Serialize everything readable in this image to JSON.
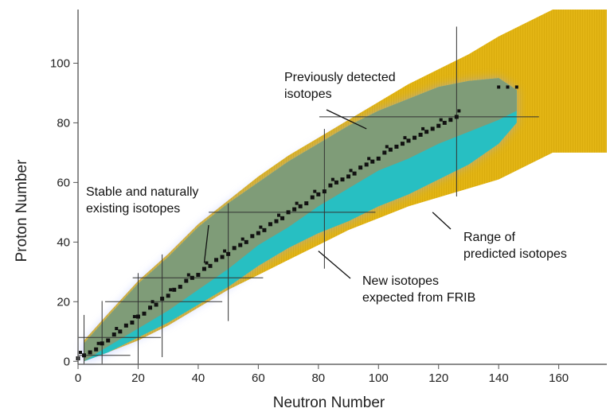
{
  "chart_data": {
    "type": "area",
    "title": "",
    "xlabel": "Neutron Number",
    "ylabel": "Proton Number",
    "xlim": [
      0,
      176
    ],
    "ylim": [
      -1,
      118
    ],
    "x_ticks": [
      0,
      20,
      40,
      60,
      80,
      100,
      120,
      140,
      160
    ],
    "y_ticks": [
      0,
      20,
      40,
      60,
      80,
      100
    ],
    "grid": false,
    "legend": "none",
    "magic_numbers": [
      2,
      8,
      20,
      28,
      50,
      82,
      126
    ],
    "regions": [
      {
        "label": "Range of predicted isotopes",
        "color": "#e3b514",
        "upper": [
          [
            2,
            7
          ],
          [
            10,
            16
          ],
          [
            20,
            27
          ],
          [
            30,
            36
          ],
          [
            40,
            46
          ],
          [
            50,
            54
          ],
          [
            60,
            62
          ],
          [
            70,
            69
          ],
          [
            80,
            75
          ],
          [
            90,
            81
          ],
          [
            100,
            87
          ],
          [
            110,
            93
          ],
          [
            120,
            98
          ],
          [
            130,
            103
          ],
          [
            140,
            109
          ],
          [
            150,
            114
          ],
          [
            158,
            118
          ],
          [
            176,
            118
          ]
        ],
        "lower": [
          [
            2,
            0
          ],
          [
            10,
            3
          ],
          [
            20,
            7
          ],
          [
            30,
            12
          ],
          [
            40,
            18
          ],
          [
            50,
            24
          ],
          [
            60,
            29
          ],
          [
            70,
            34
          ],
          [
            80,
            39
          ],
          [
            90,
            44
          ],
          [
            100,
            48
          ],
          [
            110,
            52
          ],
          [
            120,
            55
          ],
          [
            130,
            58
          ],
          [
            140,
            61
          ],
          [
            150,
            66
          ],
          [
            158,
            70
          ],
          [
            176,
            70
          ]
        ]
      },
      {
        "label": "New isotopes expected from FRIB",
        "color": "#27bfc2",
        "upper": [
          [
            2,
            6
          ],
          [
            10,
            15
          ],
          [
            20,
            26
          ],
          [
            30,
            35
          ],
          [
            40,
            45
          ],
          [
            50,
            53
          ],
          [
            60,
            60
          ],
          [
            70,
            67
          ],
          [
            80,
            73
          ],
          [
            90,
            79
          ],
          [
            100,
            84
          ],
          [
            110,
            88
          ],
          [
            120,
            92
          ],
          [
            130,
            94
          ],
          [
            140,
            95
          ],
          [
            146,
            91
          ]
        ],
        "lower": [
          [
            2,
            0
          ],
          [
            10,
            3
          ],
          [
            20,
            8
          ],
          [
            30,
            13
          ],
          [
            40,
            19
          ],
          [
            50,
            25
          ],
          [
            60,
            32
          ],
          [
            70,
            38
          ],
          [
            80,
            43
          ],
          [
            90,
            47
          ],
          [
            100,
            52
          ],
          [
            110,
            56
          ],
          [
            120,
            61
          ],
          [
            130,
            66
          ],
          [
            140,
            73
          ],
          [
            146,
            80
          ]
        ]
      },
      {
        "label": "Previously detected isotopes",
        "color": "#7f9c78",
        "upper": [
          [
            2,
            6
          ],
          [
            10,
            15
          ],
          [
            20,
            26
          ],
          [
            30,
            35
          ],
          [
            40,
            45
          ],
          [
            50,
            53
          ],
          [
            60,
            60
          ],
          [
            70,
            67
          ],
          [
            80,
            73
          ],
          [
            90,
            79
          ],
          [
            100,
            84
          ],
          [
            110,
            88
          ],
          [
            120,
            92
          ],
          [
            130,
            94
          ],
          [
            140,
            95
          ],
          [
            146,
            91
          ]
        ],
        "lower": [
          [
            2,
            0
          ],
          [
            10,
            5
          ],
          [
            20,
            11
          ],
          [
            30,
            17
          ],
          [
            40,
            24
          ],
          [
            50,
            31
          ],
          [
            60,
            39
          ],
          [
            70,
            45
          ],
          [
            80,
            52
          ],
          [
            90,
            58
          ],
          [
            100,
            64
          ],
          [
            110,
            68
          ],
          [
            120,
            73
          ],
          [
            130,
            77
          ],
          [
            140,
            81
          ],
          [
            146,
            84
          ]
        ]
      }
    ],
    "stable_isotopes": {
      "label": "Stable and naturally existing isotopes",
      "color": "#111111",
      "x": [
        0,
        2,
        4,
        6,
        8,
        10,
        12,
        14,
        16,
        18,
        20,
        22,
        24,
        26,
        28,
        30,
        32,
        34,
        36,
        38,
        40,
        42,
        44,
        46,
        48,
        50,
        52,
        54,
        56,
        58,
        60,
        62,
        64,
        66,
        68,
        70,
        72,
        74,
        76,
        78,
        80,
        82,
        84,
        86,
        88,
        90,
        92,
        94,
        96,
        98,
        100,
        102,
        104,
        106,
        108,
        110,
        112,
        114,
        116,
        118,
        120,
        122,
        124,
        126
      ],
      "y": [
        1,
        2,
        3,
        4,
        6,
        7,
        9,
        10,
        12,
        13,
        15,
        16,
        18,
        19,
        21,
        22,
        24,
        25,
        27,
        28,
        29,
        31,
        32,
        34,
        35,
        36,
        38,
        39,
        40,
        42,
        43,
        44,
        46,
        47,
        48,
        50,
        51,
        52,
        53,
        55,
        56,
        57,
        59,
        60,
        61,
        62,
        63,
        65,
        66,
        67,
        68,
        70,
        71,
        72,
        73,
        74,
        75,
        76,
        77,
        78,
        79,
        80,
        81,
        82
      ]
    },
    "extra_points": [
      {
        "x": 140,
        "y": 92
      },
      {
        "x": 143,
        "y": 92
      },
      {
        "x": 146,
        "y": 92
      }
    ],
    "annotations": [
      {
        "text_lines": [
          "Previously detected",
          "isotopes"
        ],
        "target": {
          "x": 96,
          "y": 78
        }
      },
      {
        "text_lines": [
          "Stable and naturally",
          "existing isotopes"
        ],
        "target": {
          "x": 42,
          "y": 33
        }
      },
      {
        "text_lines": [
          "Range of",
          "predicted isotopes"
        ],
        "target": {
          "x": 118,
          "y": 50
        }
      },
      {
        "text_lines": [
          "New isotopes",
          "expected from FRIB"
        ],
        "target": {
          "x": 80,
          "y": 37
        }
      }
    ]
  }
}
